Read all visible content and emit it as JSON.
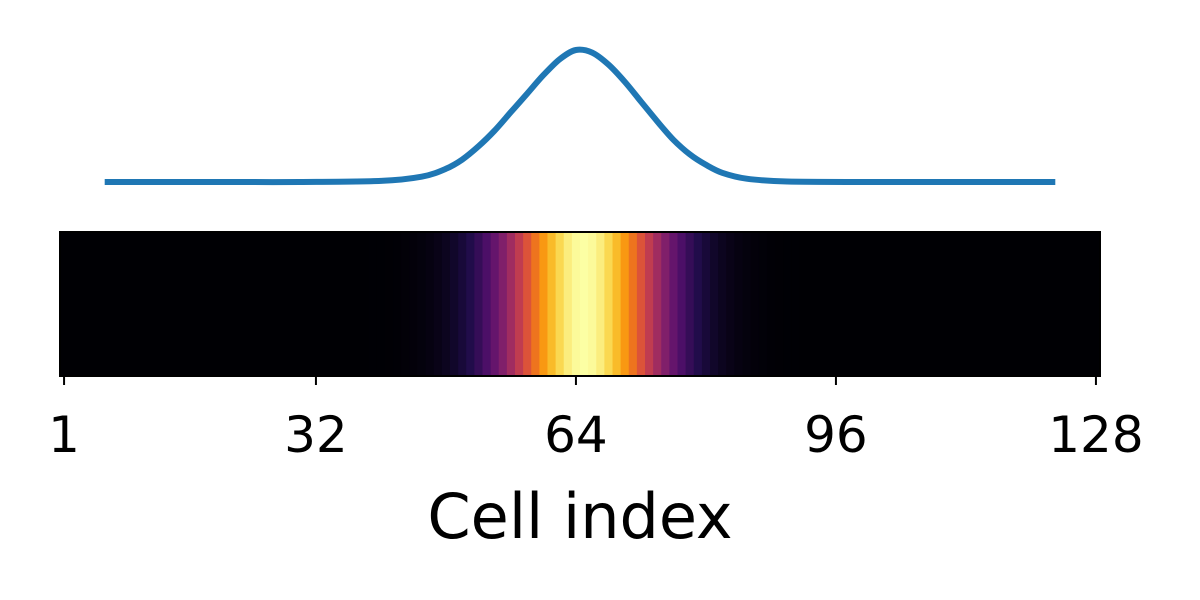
{
  "chart_data": [
    {
      "type": "line",
      "title": "",
      "xlabel": "",
      "ylabel": "",
      "xlim": [
        1,
        128
      ],
      "ylim": [
        0,
        1
      ],
      "series": [
        {
          "color": "#1f77b4",
          "x": [
            6,
            10,
            20,
            30,
            40,
            45,
            48,
            50,
            52,
            54,
            56,
            58,
            60,
            62,
            64,
            66,
            68,
            70,
            72,
            74,
            76,
            78,
            80,
            82,
            85,
            90,
            100,
            110,
            123
          ],
          "y": [
            0,
            0,
            0,
            0,
            0.008,
            0.04,
            0.1,
            0.17,
            0.27,
            0.39,
            0.53,
            0.67,
            0.81,
            0.93,
            1.0,
            0.98,
            0.89,
            0.76,
            0.61,
            0.46,
            0.32,
            0.21,
            0.13,
            0.07,
            0.025,
            0.004,
            0,
            0,
            0
          ]
        }
      ],
      "grid": false,
      "axes_visible": false
    },
    {
      "type": "heatmap",
      "title": "",
      "xlabel": "Cell index",
      "ylabel": "",
      "colormap": "inferno",
      "x_ticks": [
        "1",
        "32",
        "64",
        "96",
        "128"
      ],
      "x_tick_values": [
        1,
        32,
        64,
        96,
        128
      ],
      "cells": 128,
      "center": 65,
      "sigma": 7,
      "vmin": 0,
      "vmax": 1
    }
  ]
}
